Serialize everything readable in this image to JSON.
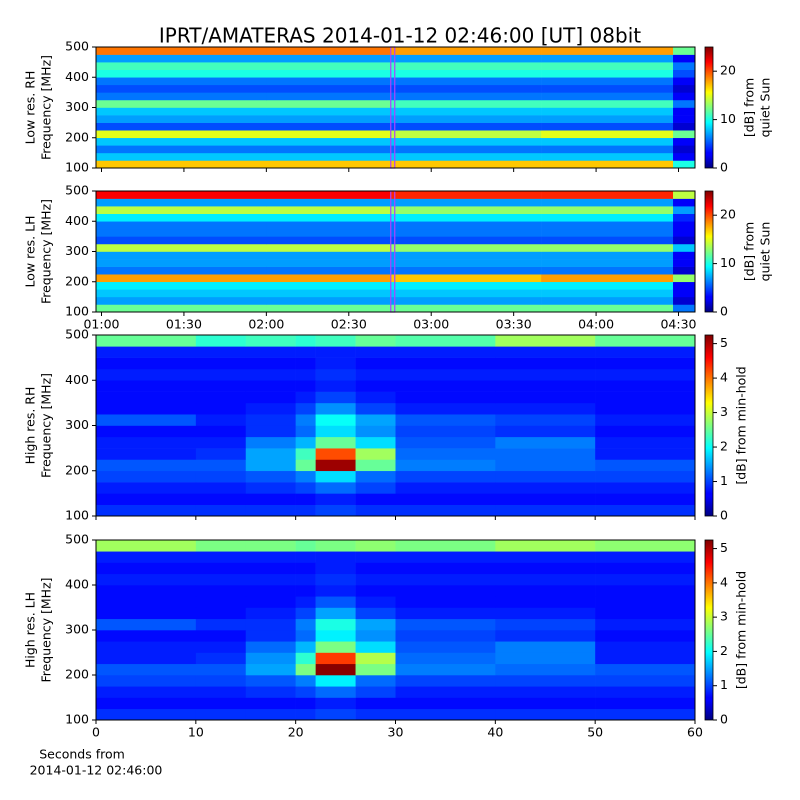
{
  "title": "IPRT/AMATERAS 2014-01-12 02:46:00 [UT]   08bit",
  "chart_data": [
    {
      "type": "heatmap",
      "ylabel": [
        "Low res. RH",
        "Frequency [MHz]"
      ],
      "xlim": [
        58,
        276
      ],
      "xticks": [
        60,
        90,
        120,
        150,
        180,
        210,
        240,
        270
      ],
      "show_xticklabels": false,
      "ylim": [
        100,
        500
      ],
      "yticks": [
        100,
        200,
        300,
        400,
        500
      ],
      "marker_x": 166,
      "marker_color": "#b040ff",
      "xbins": [
        58,
        120,
        165,
        220,
        268,
        276
      ],
      "ybins": [
        100,
        125,
        150,
        175,
        200,
        225,
        250,
        275,
        300,
        325,
        350,
        375,
        400,
        425,
        450,
        475,
        500
      ],
      "z": [
        [
          17,
          17,
          17,
          17,
          10
        ],
        [
          8,
          8,
          8,
          8,
          3
        ],
        [
          6,
          6,
          6,
          6,
          2
        ],
        [
          8,
          8,
          8,
          8,
          3
        ],
        [
          15,
          15,
          14,
          15,
          12
        ],
        [
          5,
          5,
          5,
          5,
          2
        ],
        [
          7,
          7,
          7,
          7,
          3
        ],
        [
          8,
          8,
          8,
          8,
          3
        ],
        [
          12,
          12,
          11,
          11,
          6
        ],
        [
          6,
          6,
          6,
          6,
          3
        ],
        [
          5,
          5,
          5,
          5,
          2
        ],
        [
          6,
          6,
          6,
          6,
          3
        ],
        [
          10,
          10,
          10,
          10,
          5
        ],
        [
          11,
          11,
          11,
          11,
          6
        ],
        [
          7,
          7,
          7,
          7,
          3
        ],
        [
          19,
          19,
          18,
          18,
          12
        ]
      ],
      "colormap": "jet",
      "clim": [
        0,
        25
      ],
      "cticks": [
        0,
        10,
        20
      ],
      "clabel": [
        "[dB] from",
        "quiet Sun"
      ]
    },
    {
      "type": "heatmap",
      "ylabel": [
        "Low res. LH",
        "Frequency [MHz]"
      ],
      "xlim": [
        58,
        276
      ],
      "xticks": [
        {
          "value": 60,
          "label": "01:00"
        },
        {
          "value": 90,
          "label": "01:30"
        },
        {
          "value": 120,
          "label": "02:00"
        },
        {
          "value": 150,
          "label": "02:30"
        },
        {
          "value": 180,
          "label": "03:00"
        },
        {
          "value": 210,
          "label": "03:30"
        },
        {
          "value": 240,
          "label": "04:00"
        },
        {
          "value": 270,
          "label": "04:30"
        }
      ],
      "show_xticklabels": true,
      "ylim": [
        100,
        500
      ],
      "yticks": [
        100,
        200,
        300,
        400,
        500
      ],
      "marker_x": 166,
      "marker_color": "#b040ff",
      "xbins": [
        58,
        120,
        165,
        220,
        268,
        276
      ],
      "ybins": [
        100,
        125,
        150,
        175,
        200,
        225,
        250,
        275,
        300,
        325,
        350,
        375,
        400,
        425,
        450,
        475,
        500
      ],
      "z": [
        [
          12,
          12,
          12,
          12,
          6
        ],
        [
          7,
          7,
          7,
          7,
          2
        ],
        [
          8,
          8,
          8,
          8,
          3
        ],
        [
          9,
          9,
          9,
          9,
          3
        ],
        [
          18,
          18,
          17,
          18,
          13
        ],
        [
          6,
          6,
          6,
          6,
          2
        ],
        [
          7,
          7,
          7,
          7,
          3
        ],
        [
          7,
          7,
          7,
          7,
          3
        ],
        [
          14,
          14,
          13,
          13,
          8
        ],
        [
          5,
          5,
          5,
          5,
          2
        ],
        [
          6,
          6,
          6,
          6,
          3
        ],
        [
          6,
          6,
          6,
          6,
          3
        ],
        [
          9,
          9,
          9,
          9,
          4
        ],
        [
          14,
          14,
          13,
          13,
          7
        ],
        [
          7,
          7,
          7,
          7,
          3
        ],
        [
          22,
          22,
          21,
          21,
          14
        ]
      ],
      "colormap": "jet",
      "clim": [
        0,
        25
      ],
      "cticks": [
        0,
        10,
        20
      ],
      "clabel": [
        "[dB] from",
        "quiet Sun"
      ]
    },
    {
      "type": "heatmap",
      "ylabel": [
        "High res. RH",
        "Frequency [MHz]"
      ],
      "xlim": [
        0,
        60
      ],
      "xticks": [
        0,
        10,
        20,
        30,
        40,
        50,
        60
      ],
      "show_xticklabels": false,
      "ylim": [
        100,
        500
      ],
      "yticks": [
        100,
        200,
        300,
        400,
        500
      ],
      "xbins": [
        0,
        10,
        15,
        20,
        22,
        26,
        30,
        40,
        50,
        60
      ],
      "ybins": [
        100,
        125,
        150,
        175,
        200,
        225,
        250,
        275,
        300,
        325,
        350,
        375,
        400,
        425,
        450,
        475,
        500
      ],
      "z": [
        [
          0.9,
          0.9,
          0.9,
          0.9,
          1,
          0.9,
          0.9,
          0.9,
          0.9
        ],
        [
          0.7,
          0.7,
          0.7,
          0.7,
          0.8,
          0.7,
          0.7,
          0.7,
          0.7
        ],
        [
          0.8,
          0.8,
          0.9,
          1,
          1.2,
          1,
          0.8,
          0.8,
          0.8
        ],
        [
          1,
          1,
          1.1,
          1.3,
          1.8,
          1.2,
          1,
          1,
          1
        ],
        [
          1.1,
          1.1,
          1.5,
          2.5,
          5.1,
          2.5,
          1.3,
          1.2,
          1.1
        ],
        [
          0.8,
          0.9,
          1.5,
          2.3,
          4.2,
          2.8,
          1.2,
          1.2,
          0.8
        ],
        [
          0.8,
          0.8,
          1.3,
          1.6,
          2.5,
          1.8,
          1.1,
          1.3,
          0.8
        ],
        [
          0.7,
          0.7,
          0.9,
          1.2,
          1.8,
          1.4,
          1,
          0.9,
          0.7
        ],
        [
          1.1,
          0.8,
          0.9,
          1.3,
          2,
          1.5,
          1.1,
          1,
          0.8
        ],
        [
          0.7,
          0.7,
          0.8,
          1,
          1.4,
          1,
          0.8,
          0.8,
          0.7
        ],
        [
          0.7,
          0.7,
          0.7,
          0.8,
          1,
          0.8,
          0.7,
          0.7,
          0.7
        ],
        [
          0.7,
          0.7,
          0.7,
          0.7,
          0.8,
          0.7,
          0.7,
          0.7,
          0.7
        ],
        [
          0.8,
          0.8,
          0.8,
          0.8,
          0.9,
          0.8,
          0.8,
          0.8,
          0.8
        ],
        [
          0.7,
          0.7,
          0.7,
          0.7,
          0.8,
          0.7,
          0.7,
          0.7,
          0.7
        ],
        [
          0.8,
          0.8,
          0.8,
          0.8,
          0.8,
          0.8,
          0.8,
          0.8,
          0.8
        ],
        [
          2.5,
          2.2,
          2.3,
          2.2,
          2.3,
          2.5,
          2.4,
          2.8,
          2.5
        ]
      ],
      "colormap": "jet",
      "clim": [
        0,
        5.25
      ],
      "cticks": [
        0,
        1,
        2,
        3,
        4,
        5
      ],
      "clabel": [
        "[dB] from min-hold"
      ]
    },
    {
      "type": "heatmap",
      "ylabel": [
        "High res. LH",
        "Frequency [MHz]"
      ],
      "xlim": [
        0,
        60
      ],
      "xticks": [
        0,
        10,
        20,
        30,
        40,
        50,
        60
      ],
      "show_xticklabels": true,
      "xlabel": [
        "Seconds from",
        "2014-01-12 02:46:00"
      ],
      "ylim": [
        100,
        500
      ],
      "yticks": [
        100,
        200,
        300,
        400,
        500
      ],
      "xbins": [
        0,
        10,
        15,
        20,
        22,
        26,
        30,
        40,
        50,
        60
      ],
      "ybins": [
        100,
        125,
        150,
        175,
        200,
        225,
        250,
        275,
        300,
        325,
        350,
        375,
        400,
        425,
        450,
        475,
        500
      ],
      "z": [
        [
          0.9,
          0.9,
          0.9,
          0.9,
          1,
          0.9,
          0.9,
          0.9,
          0.9
        ],
        [
          0.7,
          0.7,
          0.7,
          0.7,
          0.8,
          0.7,
          0.7,
          0.7,
          0.7
        ],
        [
          0.8,
          0.8,
          0.9,
          1,
          1.2,
          1,
          0.8,
          0.8,
          0.8
        ],
        [
          1,
          1,
          1.1,
          1.3,
          1.9,
          1.2,
          1,
          1,
          1
        ],
        [
          1.1,
          1.1,
          1.5,
          2.6,
          5.2,
          2.6,
          1.3,
          1.2,
          1.1
        ],
        [
          0.8,
          0.9,
          1.4,
          2.2,
          4.3,
          2.9,
          1.2,
          1.3,
          0.8
        ],
        [
          0.8,
          0.8,
          1.2,
          1.6,
          2.6,
          1.8,
          1.1,
          1.3,
          0.8
        ],
        [
          0.7,
          0.7,
          0.9,
          1.2,
          1.9,
          1.4,
          1,
          0.9,
          0.7
        ],
        [
          1.1,
          0.9,
          0.9,
          1.3,
          2.1,
          1.5,
          1.1,
          1,
          0.8
        ],
        [
          0.7,
          0.7,
          0.8,
          1,
          1.5,
          1,
          0.8,
          0.8,
          0.7
        ],
        [
          0.7,
          0.7,
          0.7,
          0.8,
          1.1,
          0.8,
          0.7,
          0.7,
          0.7
        ],
        [
          0.7,
          0.7,
          0.7,
          0.7,
          0.8,
          0.7,
          0.7,
          0.7,
          0.7
        ],
        [
          0.8,
          0.8,
          0.8,
          0.8,
          0.9,
          0.8,
          0.8,
          0.8,
          0.8
        ],
        [
          0.7,
          0.7,
          0.7,
          0.7,
          0.8,
          0.7,
          0.7,
          0.7,
          0.7
        ],
        [
          0.8,
          0.8,
          0.8,
          0.8,
          0.8,
          0.8,
          0.8,
          0.8,
          0.8
        ],
        [
          2.8,
          2.6,
          2.6,
          2.5,
          2.6,
          2.7,
          2.6,
          2.8,
          2.7
        ]
      ],
      "colormap": "jet",
      "clim": [
        0,
        5.25
      ],
      "cticks": [
        0,
        1,
        2,
        3,
        4,
        5
      ],
      "clabel": [
        "[dB] from min-hold"
      ]
    }
  ]
}
